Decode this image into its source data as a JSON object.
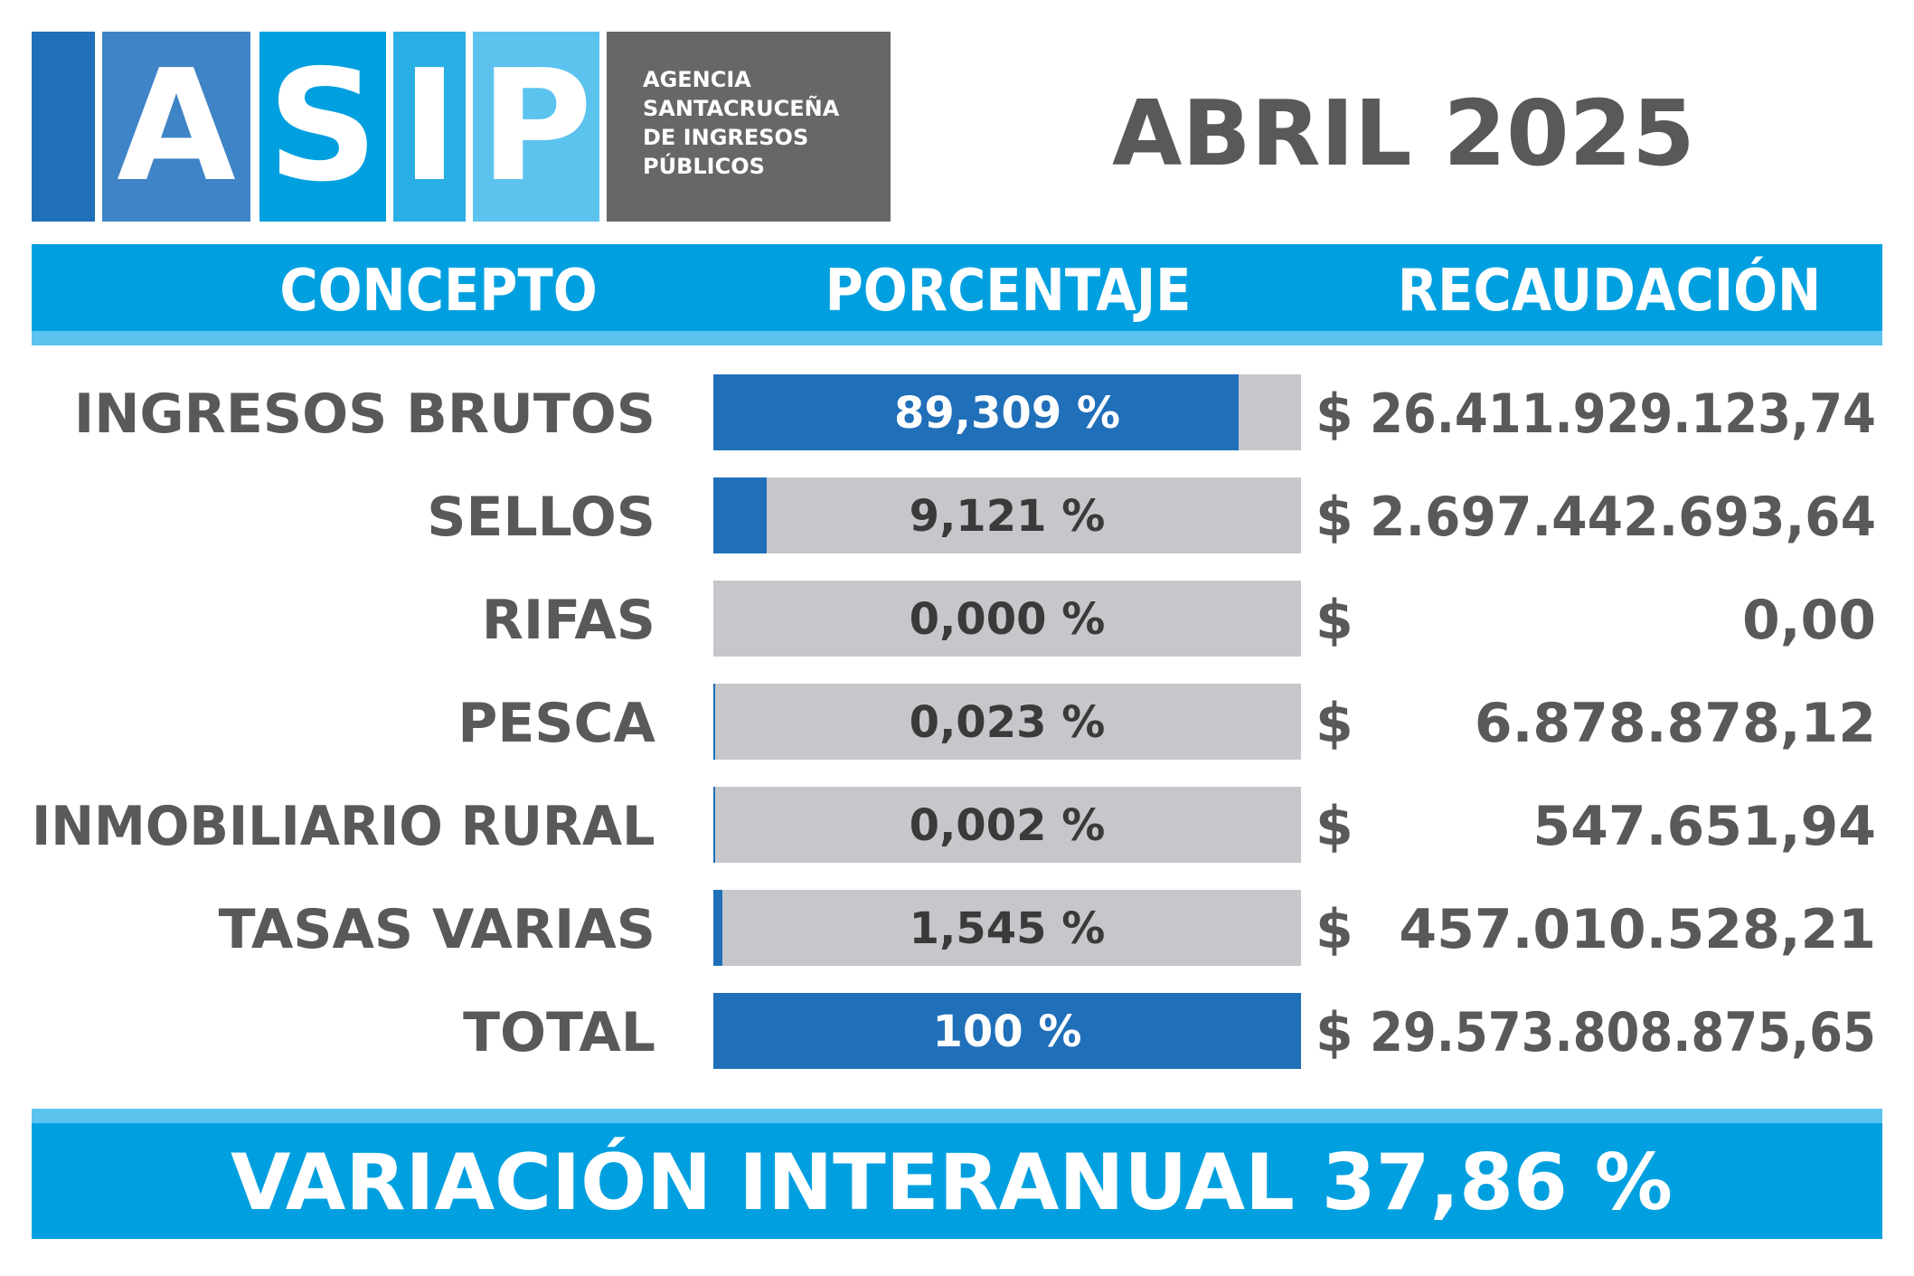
{
  "logo": {
    "letters": [
      "A",
      "S",
      "I",
      "P"
    ],
    "agency_lines": [
      "AGENCIA",
      "SANTACRUCEÑA",
      "DE INGRESOS",
      "PÚBLICOS"
    ],
    "colors": [
      "#206fb9",
      "#3e84c6",
      "#00a0e0",
      "#2aafe4",
      "#5cc3ee",
      "#676767"
    ]
  },
  "period": "ABRIL 2025",
  "header": {
    "concepto": "CONCEPTO",
    "porcentaje": "PORCENTAJE",
    "recaudacion": "RECAUDACIÓN"
  },
  "currency_symbol": "$",
  "chart_data": {
    "type": "bar",
    "categories": [
      "INGRESOS BRUTOS",
      "SELLOS",
      "RIFAS",
      "PESCA",
      "INMOBILIARIO RURAL",
      "TASAS VARIAS",
      "TOTAL"
    ],
    "values": [
      89.309,
      9.121,
      0.0,
      0.023,
      0.002,
      1.545,
      100
    ],
    "percent_labels": [
      "89,309 %",
      "9,121 %",
      "0,000 %",
      "0,023 %",
      "0,002 %",
      "1,545 %",
      "100 %"
    ],
    "amounts": [
      "26.411.929.123,74",
      "2.697.442.693,64",
      "0,00",
      "6.878.878,12",
      "547.651,94",
      "457.010.528,21",
      "29.573.808.875,65"
    ],
    "xlim": [
      0,
      100
    ],
    "colors": {
      "fill": "#206fb9",
      "track": "#c6c7cb",
      "label_on_fill": "#ffffff",
      "label_on_track": "#3a3a3a"
    }
  },
  "footer": {
    "text": "VARIACIÓN INTERANUAL 37,86 %"
  }
}
